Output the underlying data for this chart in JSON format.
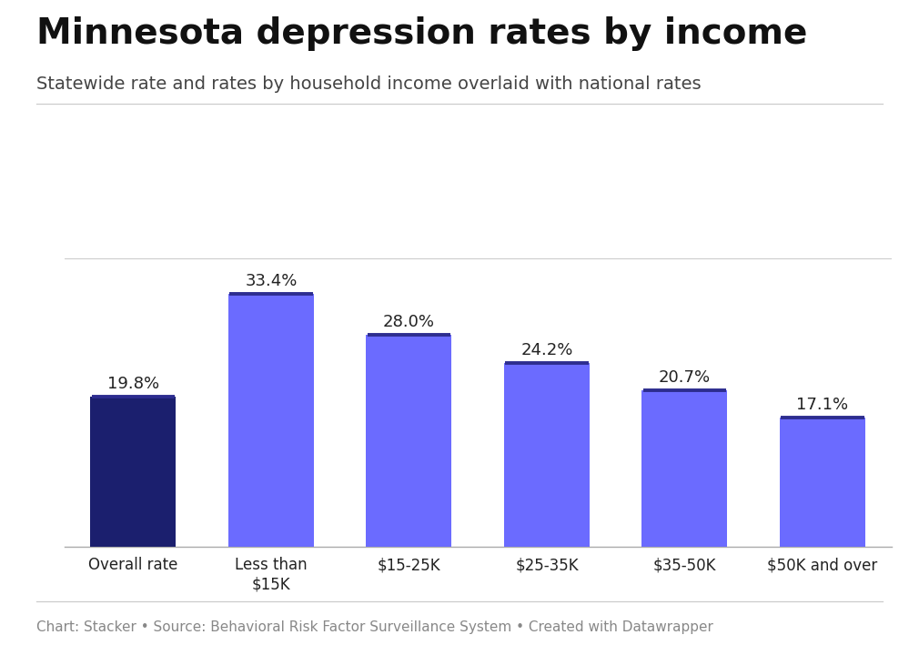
{
  "title": "Minnesota depression rates by income",
  "subtitle": "Statewide rate and rates by household income overlaid with national rates",
  "caption": "Chart: Stacker • Source: Behavioral Risk Factor Surveillance System • Created with Datawrapper",
  "categories": [
    "Overall rate",
    "Less than\n$15K",
    "$15-25K",
    "$25-35K",
    "$35-50K",
    "$50K and over"
  ],
  "values": [
    19.8,
    33.4,
    28.0,
    24.2,
    20.7,
    17.1
  ],
  "bar_colors": [
    "#1b1f6e",
    "#6b6bff",
    "#6b6bff",
    "#6b6bff",
    "#6b6bff",
    "#6b6bff"
  ],
  "national_rates": [
    19.8,
    33.4,
    28.0,
    24.2,
    20.7,
    17.1
  ],
  "national_line_color": "#2d2d8f",
  "ylim": [
    0,
    38
  ],
  "background_color": "#ffffff",
  "title_fontsize": 28,
  "subtitle_fontsize": 14,
  "caption_fontsize": 11,
  "label_fontsize": 13,
  "tick_fontsize": 12
}
